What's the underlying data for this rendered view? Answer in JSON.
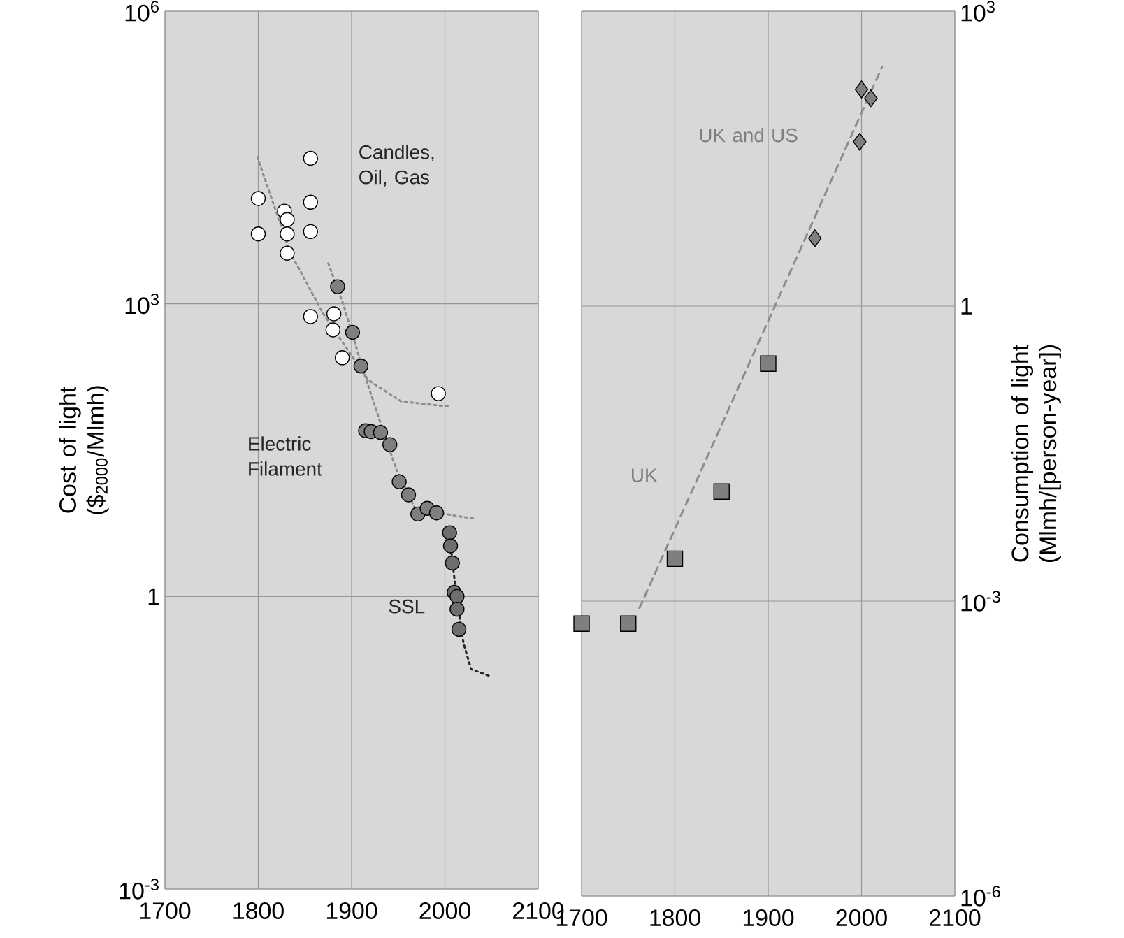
{
  "chart_data": [
    {
      "type": "scatter",
      "ylabel": "Cost of light ($$_{2000}$/Mlmh)",
      "log": "y",
      "grid": true,
      "xlim": [
        1700,
        2100
      ],
      "xticks": [
        1700,
        1800,
        1900,
        2000,
        2100
      ],
      "ylim": [
        0.001,
        1000000
      ],
      "yticks": [
        {
          "value": 0.001,
          "label": "10$^{-3}$"
        },
        1,
        {
          "value": 1000,
          "label": "10$^{3}$"
        },
        {
          "value": 1000000,
          "label": "10$^{6}$"
        }
      ],
      "series": [
        {
          "name": "Candles, Oil, Gas",
          "marker": "circle",
          "color": "#ffffff",
          "x": [
            1856,
            1800,
            1856,
            1828,
            1831,
            1800,
            1831,
            1856,
            1831,
            1856,
            1881,
            1880,
            1890,
            1993
          ],
          "values": [
            31000,
            12000,
            11000,
            8900,
            7300,
            5200,
            5200,
            5500,
            3300,
            740,
            790,
            540,
            280,
            120
          ]
        },
        {
          "name": "Electric Filament",
          "marker": "circle",
          "color": "#7f7f7f",
          "x": [
            1885,
            1901,
            1910,
            1915,
            1921,
            1931,
            1941,
            1951,
            1961,
            1971,
            1981,
            1991
          ],
          "values": [
            1500,
            510,
            230,
            50,
            49,
            48,
            36,
            15,
            11,
            7,
            8,
            7.2
          ]
        },
        {
          "name": "SSL",
          "marker": "circle",
          "color": "#6e6e6e",
          "x": [
            2005,
            2006,
            2008,
            2010,
            2013,
            2013,
            2015
          ],
          "values": [
            4.5,
            3.3,
            2.2,
            1.1,
            1.0,
            0.74,
            0.46
          ]
        },
        {
          "type": "line",
          "line_style": "dotted",
          "color": "#8c8c8c",
          "x": [
            1799,
            1834,
            1869,
            1889,
            1918,
            1953,
            2006
          ],
          "values": [
            32000,
            3400,
            810,
            420,
            165,
            100,
            88
          ]
        },
        {
          "type": "line",
          "line_style": "dotted",
          "color": "#8c8c8c",
          "x": [
            1875,
            1891,
            1913,
            1933,
            1948,
            1968,
            2000,
            2030
          ],
          "values": [
            2600,
            1000,
            200,
            52,
            20,
            8,
            7,
            6.3
          ]
        },
        {
          "type": "line",
          "line_style": "dotted",
          "color": "#222222",
          "x": [
            2004,
            2013,
            2020,
            2028,
            2050
          ],
          "values": [
            4.9,
            0.9,
            0.33,
            0.18,
            0.15
          ]
        }
      ]
    },
    {
      "type": "scatter",
      "ylabel": "Consumption of light (Mlmh/[person-year])",
      "log": "y",
      "grid": true,
      "xlim": [
        1700,
        2100
      ],
      "xticks": [
        1700,
        1800,
        1900,
        2000,
        2100
      ],
      "ylim": [
        1e-06,
        1000
      ],
      "yticks": [
        {
          "value": 1e-06,
          "label": "10$^{-6}$"
        },
        {
          "value": 0.001,
          "label": "10$^{-3}$"
        },
        1,
        {
          "value": 1000,
          "label": "10$^{3}$"
        }
      ],
      "series": [
        {
          "name": "UK",
          "marker": "square",
          "color": "#7f7f7f",
          "x": [
            1700,
            1750,
            1800,
            1850,
            1900
          ],
          "values": [
            0.00059,
            0.00059,
            0.0027,
            0.013,
            0.26
          ]
        },
        {
          "name": "UK and US",
          "marker": "diamond",
          "color": "#7f7f7f",
          "x": [
            1950,
            1998,
            2000,
            2010
          ],
          "values": [
            4.9,
            47,
            160,
            130
          ]
        },
        {
          "type": "line",
          "line_style": "dashed",
          "color": "#8c8c8c",
          "x": [
            1762,
            2022
          ],
          "values": [
            0.00085,
            270
          ]
        }
      ]
    }
  ]
}
